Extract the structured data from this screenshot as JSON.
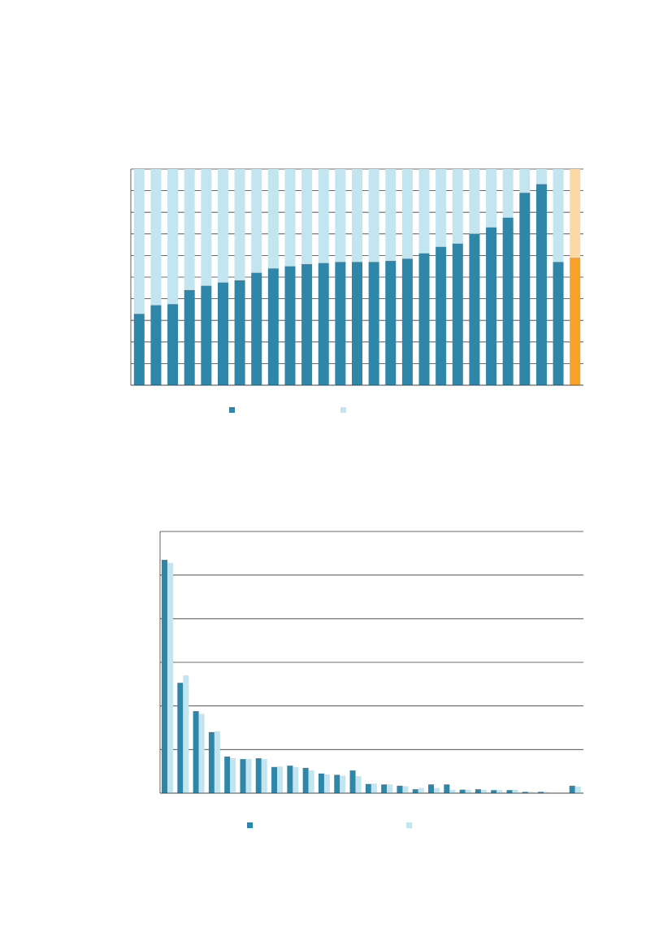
{
  "colors": {
    "primary": "#2e86a8",
    "secondary": "#c2e5ef",
    "highlight_primary": "#f7a128",
    "highlight_secondary": "#fcd8a6",
    "gridline": "#3a3a3a"
  },
  "chart_data": [
    {
      "type": "bar",
      "stacked": true,
      "title": "",
      "xlabel": "",
      "ylabel": "",
      "ylim": [
        0,
        100
      ],
      "grid": true,
      "legend_position": "bottom",
      "categories": [
        "",
        "",
        "",
        "",
        "",
        "",
        "",
        "",
        "",
        "",
        "",
        "",
        "",
        "",
        "",
        "",
        "",
        "",
        "",
        "",
        "",
        "",
        "",
        "",
        "",
        "",
        ""
      ],
      "highlight_index": 26,
      "series": [
        {
          "name": "",
          "values": [
            33,
            37,
            37.5,
            44,
            46,
            47.5,
            48.5,
            52,
            54,
            55,
            56,
            56.5,
            57,
            57,
            57,
            57.5,
            58.5,
            61,
            64,
            65.5,
            70,
            73,
            77.5,
            89,
            93,
            57,
            59
          ]
        },
        {
          "name": "",
          "values": [
            67,
            63,
            62.5,
            56,
            54,
            52.5,
            51.5,
            48,
            46,
            45,
            44,
            43.5,
            43,
            43,
            43,
            42.5,
            41.5,
            39,
            36,
            34.5,
            30,
            27,
            22.5,
            11,
            7,
            43,
            41
          ]
        }
      ]
    },
    {
      "type": "bar",
      "stacked": false,
      "title": "",
      "xlabel": "",
      "ylabel": "",
      "ylim": [
        0,
        60
      ],
      "grid": true,
      "legend_position": "bottom",
      "categories": [
        "",
        "",
        "",
        "",
        "",
        "",
        "",
        "",
        "",
        "",
        "",
        "",
        "",
        "",
        "",
        "",
        "",
        "",
        "",
        "",
        "",
        "",
        "",
        "",
        "",
        "",
        ""
      ],
      "series": [
        {
          "name": "",
          "values": [
            53.5,
            25.3,
            18.8,
            14.0,
            8.4,
            7.8,
            8.0,
            6.0,
            6.3,
            5.8,
            4.5,
            4.2,
            5.2,
            2.1,
            2.0,
            1.7,
            0.9,
            2.0,
            2.0,
            0.8,
            0.9,
            0.7,
            0.7,
            0.3,
            0.3,
            0.0,
            1.7
          ]
        },
        {
          "name": "",
          "values": [
            52.8,
            27.0,
            18.2,
            14.2,
            8.0,
            7.8,
            7.8,
            6.1,
            6.0,
            5.2,
            4.3,
            4.0,
            3.9,
            2.2,
            2.0,
            1.6,
            1.2,
            1.2,
            0.8,
            0.8,
            0.8,
            0.7,
            0.8,
            0.3,
            0.3,
            0.0,
            1.5
          ]
        }
      ]
    }
  ]
}
